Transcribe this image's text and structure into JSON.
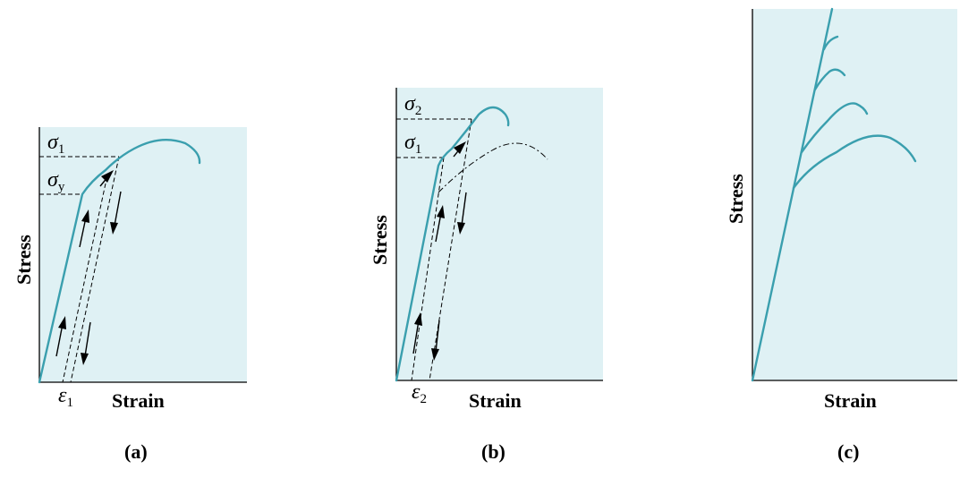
{
  "colors": {
    "panel_fill": "#dff1f4",
    "curve": "#3a9fae",
    "dashed": "#000000"
  },
  "panels": [
    {
      "id": "a",
      "caption": "(a)",
      "xlabel": "Strain",
      "ylabel": "Stress",
      "strain_symbol": {
        "base": "ε",
        "sub": "1"
      },
      "stress_symbols": [
        {
          "base": "σ",
          "sub": "1"
        },
        {
          "base": "σ",
          "sub": "y"
        }
      ]
    },
    {
      "id": "b",
      "caption": "(b)",
      "xlabel": "Strain",
      "ylabel": "Stress",
      "strain_symbol": {
        "base": "ε",
        "sub": "2"
      },
      "stress_symbols": [
        {
          "base": "σ",
          "sub": "2"
        },
        {
          "base": "σ",
          "sub": "1"
        }
      ]
    },
    {
      "id": "c",
      "caption": "(c)",
      "xlabel": "Strain",
      "ylabel": "Stress"
    }
  ]
}
